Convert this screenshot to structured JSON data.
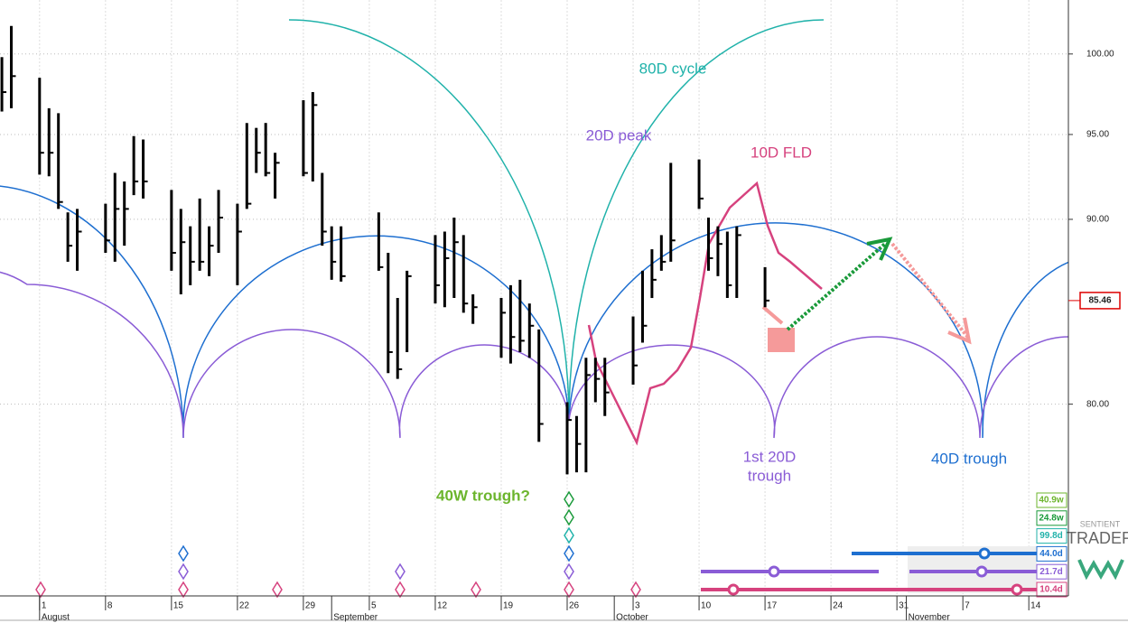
{
  "chart_data": {
    "type": "hlc",
    "log_scale": true,
    "grid": true,
    "bar_color": "#000000",
    "xlim": [
      -4.2,
      109.2
    ],
    "ylim": [
      70.8,
      103.5
    ],
    "yticks": [
      {
        "value": 80,
        "label": "80.00"
      },
      {
        "value": 90,
        "label": "90.00"
      },
      {
        "value": 95,
        "label": "95.00"
      },
      {
        "value": 100,
        "label": "100.00"
      }
    ],
    "xticks": [
      {
        "value": 0,
        "label": "1"
      },
      {
        "value": 7,
        "label": "8"
      },
      {
        "value": 14,
        "label": "15"
      },
      {
        "value": 21,
        "label": "22"
      },
      {
        "value": 28,
        "label": "29"
      },
      {
        "value": 35,
        "label": "5"
      },
      {
        "value": 42,
        "label": "12"
      },
      {
        "value": 49,
        "label": "19"
      },
      {
        "value": 56,
        "label": "26"
      },
      {
        "value": 63,
        "label": "3"
      },
      {
        "value": 70,
        "label": "10"
      },
      {
        "value": 77,
        "label": "17"
      },
      {
        "value": 84,
        "label": "24"
      },
      {
        "value": 91,
        "label": "31"
      },
      {
        "value": 98,
        "label": "7"
      },
      {
        "value": 105,
        "label": "14"
      }
    ],
    "months": [
      {
        "value": 0,
        "label": "August"
      },
      {
        "value": 31,
        "label": "September"
      },
      {
        "value": 61,
        "label": "October"
      },
      {
        "value": 92,
        "label": "November"
      }
    ],
    "bars": {
      "x": [
        -4,
        -3,
        0,
        1,
        2,
        3,
        4,
        7,
        8,
        9,
        10,
        11,
        14,
        15,
        16,
        17,
        18,
        19,
        21,
        22,
        23,
        24,
        25,
        28,
        29,
        30,
        31,
        32,
        36,
        37,
        38,
        39,
        42,
        43,
        44,
        45,
        46,
        49,
        50,
        51,
        52,
        53,
        56,
        57,
        58,
        59,
        60,
        63,
        64,
        65,
        66,
        67,
        70,
        71,
        72,
        73,
        74,
        77
      ],
      "high": [
        99.8,
        101.8,
        98.5,
        96.6,
        96.3,
        90.4,
        90.6,
        90.9,
        92.7,
        92.2,
        94.9,
        94.7,
        91.7,
        90.6,
        89.6,
        91.2,
        89.6,
        91.7,
        90.9,
        95.7,
        95.4,
        95.7,
        93.9,
        97.1,
        97.6,
        92.7,
        89.6,
        89.6,
        90.4,
        88.1,
        85.6,
        87.1,
        89.1,
        89.3,
        90.1,
        89.1,
        85.8,
        85.6,
        86.3,
        86.6,
        85.3,
        83.9,
        80.1,
        79.4,
        82.4,
        82.4,
        82.4,
        84.6,
        87.1,
        88.3,
        89.1,
        93.3,
        93.5,
        90.1,
        89.6,
        89.3,
        89.6,
        87.3
      ],
      "low": [
        96.4,
        96.6,
        92.6,
        92.5,
        90.6,
        87.6,
        87.1,
        88.1,
        87.6,
        88.5,
        91.4,
        91.2,
        87.1,
        85.8,
        86.3,
        87.1,
        86.8,
        88.1,
        86.3,
        90.6,
        92.7,
        92.5,
        91.2,
        92.5,
        92.2,
        88.5,
        86.6,
        86.5,
        87.1,
        81.6,
        81.3,
        82.7,
        85.3,
        85.1,
        85.6,
        84.8,
        84.2,
        82.4,
        82.1,
        82.7,
        82.4,
        78.1,
        76.5,
        76.6,
        76.6,
        80.1,
        79.4,
        81.0,
        83.2,
        85.6,
        87.1,
        87.6,
        90.6,
        87.1,
        86.8,
        85.6,
        85.6,
        85.1
      ],
      "close": [
        97.6,
        98.6,
        93.9,
        93.9,
        91.0,
        88.5,
        89.3,
        88.8,
        90.6,
        90.6,
        92.2,
        92.2,
        88.1,
        88.7,
        87.6,
        87.6,
        88.5,
        90.1,
        89.3,
        90.9,
        93.9,
        92.7,
        93.3,
        92.7,
        96.8,
        89.3,
        87.6,
        86.8,
        87.3,
        82.7,
        81.8,
        86.8,
        86.3,
        87.8,
        88.7,
        85.3,
        85.1,
        84.8,
        83.5,
        83.3,
        84.1,
        79.0,
        79.2,
        78.0,
        81.5,
        81.3,
        80.6,
        82.0,
        84.1,
        86.6,
        87.6,
        88.8,
        91.2,
        87.8,
        88.6,
        86.3,
        89.1,
        85.46
      ]
    },
    "last_price": 85.46,
    "annotations": {
      "cycle80": "80D cycle",
      "peak20": "20D peak",
      "fld10": "10D FLD",
      "trough40w": "40W trough?",
      "trough20": [
        "1st 20D",
        "trough"
      ],
      "trough40d": "40D trough"
    },
    "cycle_labels": [
      "40.9w",
      "24.8w",
      "99.8d",
      "44.0d",
      "21.7d",
      "10.4d"
    ],
    "logo": [
      "SENTIENT",
      "TRADER"
    ]
  }
}
